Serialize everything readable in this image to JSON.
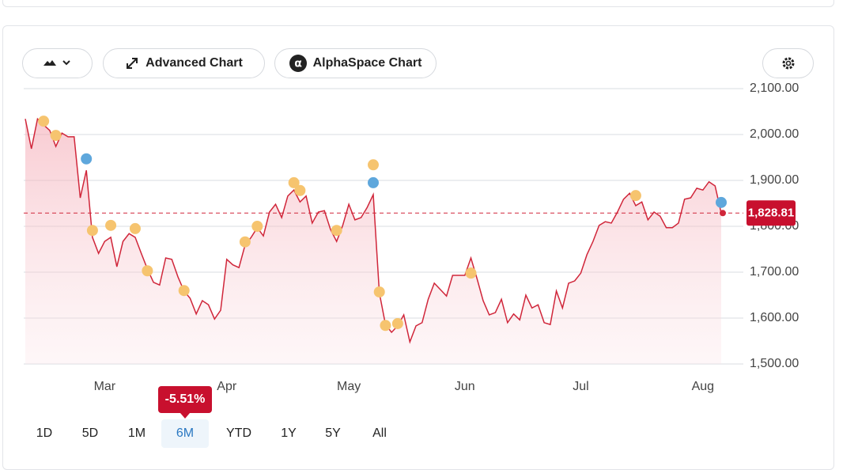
{
  "toolbar": {
    "buttons": [
      "Advanced Chart",
      "AlphaSpace Chart"
    ]
  },
  "chart_data": {
    "type": "line",
    "color": "#d0263a",
    "x": [
      0,
      1,
      2,
      3,
      4,
      5,
      6,
      7,
      8,
      9,
      10,
      11,
      12,
      13,
      14,
      15,
      16,
      17,
      18,
      19,
      20,
      21,
      22,
      23,
      24,
      25,
      26,
      27,
      28,
      29,
      30,
      31,
      32,
      33,
      34,
      35,
      36,
      37,
      38,
      39,
      40,
      41,
      42,
      43,
      44,
      45,
      46,
      47,
      48,
      49,
      50,
      51,
      52,
      53,
      54,
      55,
      56,
      57,
      58,
      59,
      60,
      61,
      62,
      63,
      64,
      65,
      66,
      67,
      68,
      69,
      70,
      71,
      72,
      73,
      74,
      75,
      76,
      77,
      78,
      79,
      80,
      81,
      82,
      83,
      84,
      85,
      86,
      87,
      88,
      89,
      90,
      91,
      92,
      93,
      94,
      95,
      96,
      97,
      98,
      99,
      100,
      101,
      102,
      103,
      104,
      105,
      106,
      107,
      108,
      109,
      110,
      111,
      112,
      113,
      114
    ],
    "values": [
      2034,
      1969,
      2034,
      2021,
      2009,
      1974,
      2003,
      1995,
      1995,
      1862,
      1922,
      1776,
      1741,
      1767,
      1776,
      1712,
      1767,
      1784,
      1776,
      1741,
      1707,
      1678,
      1672,
      1731,
      1728,
      1690,
      1659,
      1643,
      1609,
      1638,
      1629,
      1598,
      1617,
      1728,
      1716,
      1710,
      1759,
      1776,
      1797,
      1779,
      1831,
      1848,
      1819,
      1866,
      1879,
      1853,
      1866,
      1807,
      1831,
      1834,
      1793,
      1767,
      1802,
      1848,
      1814,
      1819,
      1841,
      1869,
      1655,
      1586,
      1569,
      1583,
      1607,
      1548,
      1583,
      1590,
      1641,
      1676,
      1662,
      1648,
      1693,
      1693,
      1693,
      1731,
      1686,
      1638,
      1607,
      1612,
      1641,
      1590,
      1609,
      1596,
      1650,
      1622,
      1629,
      1590,
      1586,
      1659,
      1622,
      1676,
      1681,
      1698,
      1738,
      1767,
      1802,
      1810,
      1807,
      1831,
      1859,
      1872,
      1845,
      1853,
      1814,
      1831,
      1822,
      1797,
      1797,
      1807,
      1859,
      1862,
      1883,
      1879,
      1897,
      1888,
      1828.81
    ],
    "xlim": [
      0,
      114
    ],
    "xticks": [
      {
        "value": 13,
        "label": "Mar"
      },
      {
        "value": 33,
        "label": "Apr"
      },
      {
        "value": 53,
        "label": "May"
      },
      {
        "value": 72,
        "label": "Jun"
      },
      {
        "value": 91,
        "label": "Jul"
      },
      {
        "value": 111,
        "label": "Aug"
      }
    ],
    "ylim": [
      1500,
      2100
    ],
    "yticks": [
      {
        "value": 1500,
        "label": "1,500.00"
      },
      {
        "value": 1600,
        "label": "1,600.00"
      },
      {
        "value": 1700,
        "label": "1,700.00"
      },
      {
        "value": 1800,
        "label": "1,800.00"
      },
      {
        "value": 1900,
        "label": "1,900.00"
      },
      {
        "value": 2000,
        "label": "2,000.00"
      },
      {
        "value": 2100,
        "label": "2,100.00"
      }
    ],
    "grid": true,
    "last_price": 1828.81,
    "last_price_label": "1,828.81",
    "markers": {
      "x": [
        3,
        5,
        10,
        11,
        14,
        18,
        20,
        26,
        36,
        38,
        44,
        45,
        51,
        57,
        57,
        58,
        59,
        61,
        73,
        100,
        114
      ],
      "values": [
        2029,
        1998,
        1947,
        1791,
        1802,
        1795,
        1703,
        1660,
        1766,
        1800,
        1895,
        1878,
        1791,
        1895,
        1934,
        1657,
        1584,
        1588,
        1698,
        1867,
        1852
      ],
      "colors": [
        "#f6c46f",
        "#f6c46f",
        "#5ea7dc",
        "#f6c46f",
        "#f6c46f",
        "#f6c46f",
        "#f6c46f",
        "#f6c46f",
        "#f6c46f",
        "#f6c46f",
        "#f6c46f",
        "#f6c46f",
        "#f6c46f",
        "#5ea7dc",
        "#f6c46f",
        "#f6c46f",
        "#f6c46f",
        "#f6c46f",
        "#f6c46f",
        "#f6c46f",
        "#5ea7dc"
      ]
    }
  },
  "change_badge": "-5.51%",
  "ranges": {
    "options": [
      "1D",
      "5D",
      "1M",
      "6M",
      "YTD",
      "1Y",
      "5Y",
      "All"
    ],
    "active": "6M"
  }
}
